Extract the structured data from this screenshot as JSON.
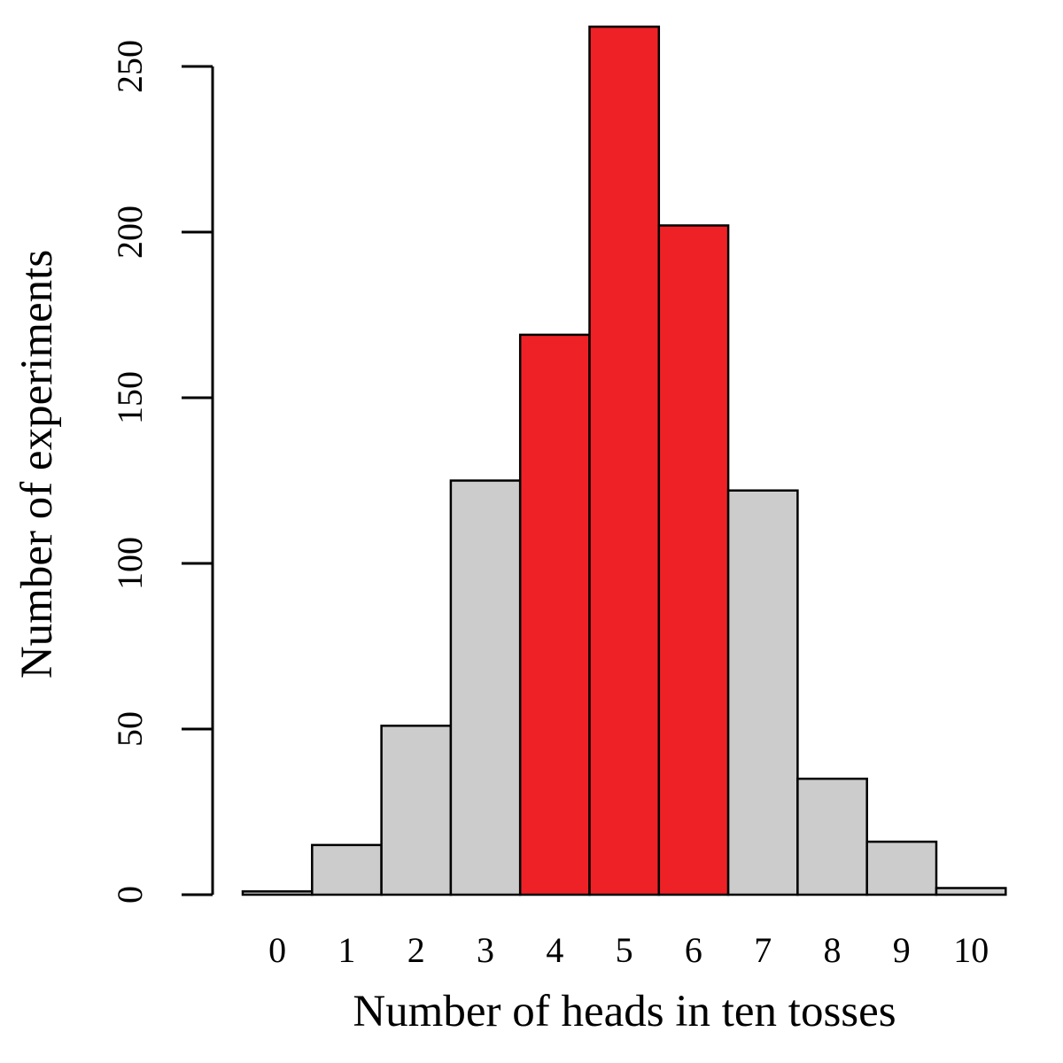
{
  "chart_data": {
    "type": "bar",
    "title": "",
    "xlabel": "Number of heads in ten tosses",
    "ylabel": "Number of experiments",
    "categories": [
      "0",
      "1",
      "2",
      "3",
      "4",
      "5",
      "6",
      "7",
      "8",
      "9",
      "10"
    ],
    "values": [
      1,
      15,
      51,
      125,
      169,
      262,
      202,
      122,
      35,
      16,
      2
    ],
    "highlighted_categories": [
      "4",
      "5",
      "6"
    ],
    "colors": {
      "default_bar": "#cccccc",
      "highlight_bar": "#ee2226",
      "bar_outline": "#000000"
    },
    "ylim": [
      0,
      250
    ],
    "yticks": [
      "0",
      "50",
      "100",
      "150",
      "200",
      "250"
    ],
    "grid": false,
    "legend": "none"
  }
}
